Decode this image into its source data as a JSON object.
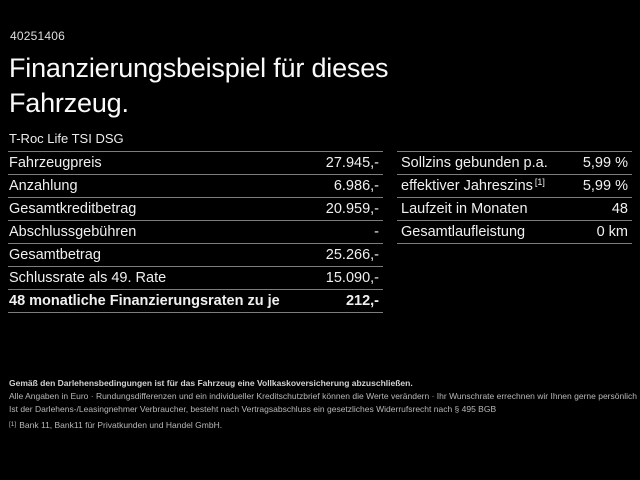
{
  "header": {
    "vehicle_id": "40251406",
    "title": "Finanzierungsbeispiel für dieses Fahrzeug.",
    "model": "T-Roc Life TSI DSG"
  },
  "finance_table": {
    "rows": [
      {
        "label": "Fahrzeugpreis",
        "value": "27.945,-"
      },
      {
        "label": "Anzahlung",
        "value": "6.986,-"
      },
      {
        "label": "Gesamtkreditbetrag",
        "value": "20.959,-"
      },
      {
        "label": "Abschlussgebühren",
        "value": "-"
      },
      {
        "label": "Gesamtbetrag",
        "value": "25.266,-"
      },
      {
        "label": "Schlussrate als 49. Rate",
        "value": "15.090,-"
      },
      {
        "label": "48 monatliche Finanzierungsraten zu je",
        "value": "212,-"
      }
    ]
  },
  "conditions_table": {
    "rows": [
      {
        "label": "Sollzins gebunden p.a.",
        "sup": "",
        "value": "5,99 %"
      },
      {
        "label": "effektiver Jahreszins",
        "sup": "[1]",
        "value": "5,99 %"
      },
      {
        "label": "Laufzeit in Monaten",
        "sup": "",
        "value": "48"
      },
      {
        "label": "Gesamtlaufleistung",
        "sup": "",
        "value": "0 km"
      }
    ]
  },
  "footer": {
    "line1": "Gemäß den Darlehensbedingungen ist für das Fahrzeug eine Vollkaskoversicherung abzuschließen.",
    "line2": "Alle Angaben in Euro · Rundungsdifferenzen und ein individueller Kreditschutzbrief können die Werte verändern · Ihr Wunschrate errechnen wir Ihnen gerne persönlich",
    "line3": "Ist der Darlehens-/Leasingnehmer Verbraucher, besteht nach Vertragsabschluss ein gesetzliches Widerrufsrecht nach § 495 BGB",
    "footnote_marker": "[1]",
    "footnote_text": "Bank 11, Bank11 für Privatkunden und Handel GmbH."
  },
  "colors": {
    "background": "#000000",
    "text": "#f0f0f0",
    "divider": "#7d7d7d",
    "footer_text": "#b8b8b8"
  }
}
